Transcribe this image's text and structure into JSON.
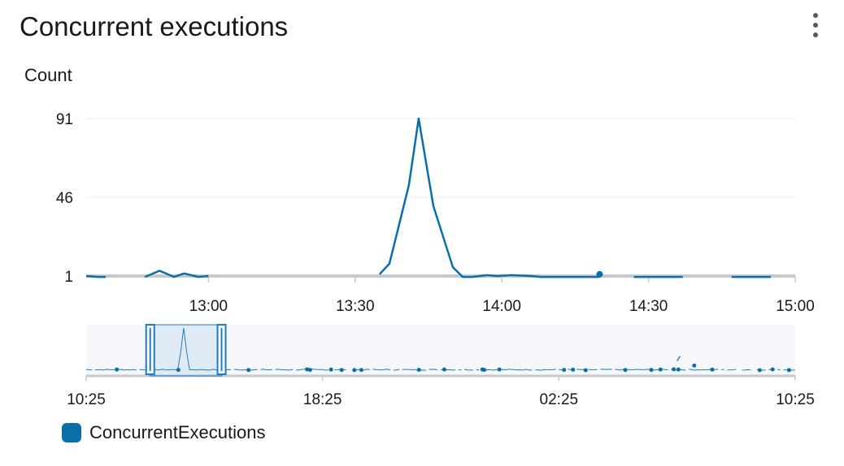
{
  "widget": {
    "title": "Concurrent executions",
    "menu_icon": "vertical-ellipsis-icon"
  },
  "colors": {
    "series": "#0a6fa8",
    "grid": "#e9ebed",
    "axis": "#c7c9cc",
    "navigator_bg": "#f5f7fa",
    "selection": "#1a7bc7"
  },
  "chart_data": {
    "type": "line",
    "ylabel": "Count",
    "yticks": [
      1,
      46,
      91
    ],
    "ylim": [
      1,
      91
    ],
    "xticks": [
      "13:00",
      "13:30",
      "14:00",
      "14:30",
      "15:00"
    ],
    "series": [
      {
        "name": "ConcurrentExecutions",
        "segments": [
          [
            [
              "12:35",
              1
            ],
            [
              "12:37.5",
              0.5
            ],
            [
              "12:39",
              0.5
            ]
          ],
          [
            [
              "12:47",
              0.5
            ],
            [
              "12:50",
              4
            ],
            [
              "12:53",
              0.5
            ],
            [
              "12:55",
              2.5
            ],
            [
              "12:58",
              0.5
            ],
            [
              "13:00",
              1
            ]
          ],
          [
            [
              "13:35",
              2
            ],
            [
              "13:37",
              8
            ],
            [
              "13:41",
              53
            ],
            [
              "13:43",
              91
            ],
            [
              "13:46",
              41
            ],
            [
              "13:50",
              6
            ],
            [
              "13:52",
              0.5
            ],
            [
              "13:54",
              0.5
            ],
            [
              "13:57",
              1.5
            ],
            [
              "13:59",
              1
            ],
            [
              "14:02",
              1.5
            ],
            [
              "14:06",
              1
            ],
            [
              "14:08",
              0.5
            ],
            [
              "14:15",
              0.5
            ],
            [
              "14:20",
              0.5
            ]
          ],
          [
            [
              "14:27",
              0.5
            ],
            [
              "14:37",
              0.5
            ]
          ],
          [
            [
              "14:47",
              0.5
            ],
            [
              "14:55",
              0.5
            ]
          ]
        ],
        "points": [
          [
            "14:20",
            2
          ]
        ]
      }
    ],
    "navigator": {
      "xticks": [
        "10:25",
        "18:25",
        "02:25",
        "10:25"
      ],
      "selected_range": [
        "12:35",
        "15:00"
      ]
    }
  },
  "legend": {
    "items": [
      {
        "label": "ConcurrentExecutions"
      }
    ]
  }
}
